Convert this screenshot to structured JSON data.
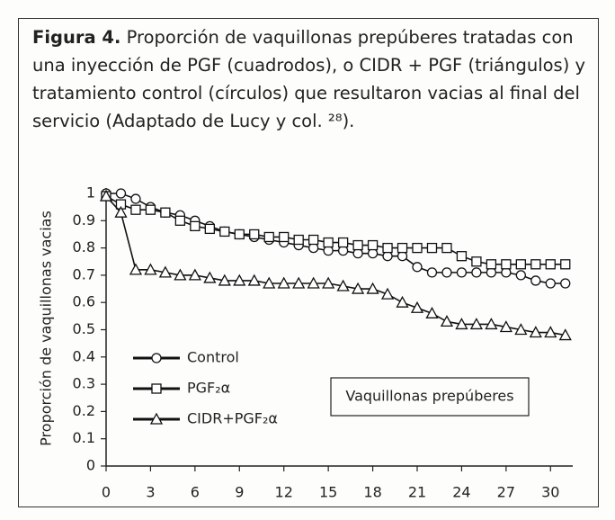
{
  "caption_label": "Figura 4.",
  "caption": "Proporción de vaquillonas prepúberes tratadas con una inyección de PGF (cuadrodos), o CIDR + PGF (triángulos) y tratamiento control (círculos) que resultaron vacias al final del servicio (Adaptado de Lucy y col. ²⁸).",
  "chart_data": {
    "type": "line",
    "y_label": "Proporción de vaquillonas vacias",
    "annotation": "Vaquillonas prepúberes",
    "x": [
      0,
      1,
      2,
      3,
      4,
      5,
      6,
      7,
      8,
      9,
      10,
      11,
      12,
      13,
      14,
      15,
      16,
      17,
      18,
      19,
      20,
      21,
      22,
      23,
      24,
      25,
      26,
      27,
      28,
      29,
      30,
      31
    ],
    "series": [
      {
        "name": "Control",
        "color": "#111111",
        "marker": "circle",
        "values": [
          1,
          1,
          0.98,
          0.95,
          0.93,
          0.92,
          0.9,
          0.88,
          0.86,
          0.85,
          0.84,
          0.83,
          0.82,
          0.81,
          0.8,
          0.79,
          0.79,
          0.78,
          0.78,
          0.77,
          0.77,
          0.73,
          0.71,
          0.71,
          0.71,
          0.71,
          0.71,
          0.71,
          0.7,
          0.68,
          0.67,
          0.67
        ]
      },
      {
        "name": "PGF₂α",
        "color": "#111111",
        "marker": "square",
        "values": [
          0.99,
          0.96,
          0.94,
          0.94,
          0.93,
          0.9,
          0.88,
          0.87,
          0.86,
          0.85,
          0.85,
          0.84,
          0.84,
          0.83,
          0.83,
          0.82,
          0.82,
          0.81,
          0.81,
          0.8,
          0.8,
          0.8,
          0.8,
          0.8,
          0.77,
          0.75,
          0.74,
          0.74,
          0.74,
          0.74,
          0.74,
          0.74
        ]
      },
      {
        "name": "CIDR+PGF₂α",
        "color": "#111111",
        "marker": "triangle",
        "values": [
          0.99,
          0.93,
          0.72,
          0.72,
          0.71,
          0.7,
          0.7,
          0.69,
          0.68,
          0.68,
          0.68,
          0.67,
          0.67,
          0.67,
          0.67,
          0.67,
          0.66,
          0.65,
          0.65,
          0.63,
          0.6,
          0.58,
          0.56,
          0.53,
          0.52,
          0.52,
          0.52,
          0.51,
          0.5,
          0.49,
          0.49,
          0.48
        ]
      }
    ],
    "xlim": [
      0,
      31.5
    ],
    "xticks": [
      0,
      3,
      6,
      9,
      12,
      15,
      18,
      21,
      24,
      27,
      30
    ],
    "ylim": [
      0,
      1
    ],
    "yticks": [
      0,
      0.1,
      0.2,
      0.3,
      0.4,
      0.5,
      0.6,
      0.7,
      0.8,
      0.9,
      1
    ],
    "legend": "lower-left",
    "grid": false
  }
}
